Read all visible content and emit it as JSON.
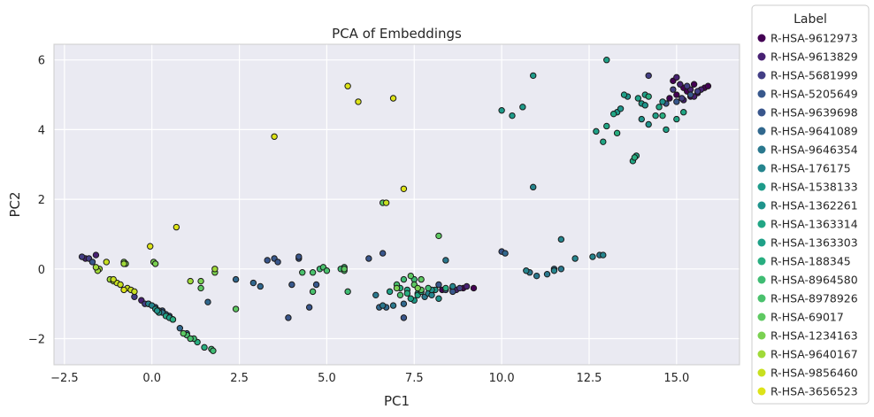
{
  "chart_data": {
    "type": "scatter",
    "title": "PCA of Embeddings",
    "xlabel": "PC1",
    "ylabel": "PC2",
    "xlim": [
      -2.8,
      16.8
    ],
    "ylim": [
      -2.75,
      6.45
    ],
    "xticks": [
      -2.5,
      0.0,
      2.5,
      5.0,
      7.5,
      10.0,
      12.5,
      15.0
    ],
    "xtick_labels": [
      "−2.5",
      "0.0",
      "2.5",
      "5.0",
      "7.5",
      "10.0",
      "12.5",
      "15.0"
    ],
    "yticks": [
      -2,
      0,
      2,
      4,
      6
    ],
    "ytick_labels": [
      "−2",
      "0",
      "2",
      "4",
      "6"
    ],
    "grid": true,
    "legend": {
      "title": "Label",
      "placement": "right-outside"
    },
    "series": [
      {
        "name": "R-HSA-9612973",
        "color": "#440154",
        "points": [
          [
            14.9,
            5.4
          ],
          [
            15.2,
            5.2
          ],
          [
            15.5,
            5.3
          ],
          [
            15.8,
            5.2
          ],
          [
            15.0,
            5.0
          ],
          [
            15.3,
            5.1
          ],
          [
            15.6,
            5.05
          ],
          [
            15.9,
            5.25
          ],
          [
            14.8,
            4.9
          ],
          [
            15.4,
            4.95
          ],
          [
            8.6,
            -0.55
          ],
          [
            8.9,
            -0.55
          ],
          [
            9.2,
            -0.55
          ],
          [
            8.3,
            -0.6
          ]
        ]
      },
      {
        "name": "R-HSA-9613829",
        "color": "#482173",
        "points": [
          [
            15.0,
            5.5
          ],
          [
            15.1,
            5.3
          ],
          [
            15.4,
            5.15
          ],
          [
            15.7,
            5.15
          ],
          [
            15.2,
            4.85
          ],
          [
            15.5,
            4.95
          ],
          [
            9.0,
            -0.5
          ],
          [
            8.7,
            -0.6
          ],
          [
            -0.3,
            -0.9
          ],
          [
            -0.1,
            -1.0
          ],
          [
            -1.9,
            0.3
          ],
          [
            -1.6,
            0.4
          ]
        ]
      },
      {
        "name": "R-HSA-5681999",
        "color": "#433e85",
        "points": [
          [
            15.3,
            5.25
          ],
          [
            15.6,
            5.1
          ],
          [
            14.9,
            5.15
          ],
          [
            15.15,
            4.9
          ],
          [
            14.2,
            5.55
          ],
          [
            -2.0,
            0.35
          ],
          [
            -1.8,
            0.3
          ],
          [
            -0.5,
            -0.8
          ],
          [
            -0.2,
            -1.0
          ],
          [
            8.8,
            -0.55
          ]
        ]
      },
      {
        "name": "R-HSA-5205649",
        "color": "#38588c",
        "points": [
          [
            15.4,
            5.0
          ],
          [
            15.0,
            4.8
          ],
          [
            14.7,
            4.75
          ],
          [
            8.4,
            -0.6
          ],
          [
            8.6,
            -0.65
          ],
          [
            0.1,
            -1.1
          ],
          [
            0.3,
            -1.2
          ],
          [
            -1.7,
            0.2
          ],
          [
            3.5,
            0.3
          ],
          [
            4.2,
            0.3
          ],
          [
            4.0,
            -0.45
          ],
          [
            4.7,
            -0.45
          ]
        ]
      },
      {
        "name": "R-HSA-9639698",
        "color": "#39568c",
        "points": [
          [
            0.5,
            -1.35
          ],
          [
            0.6,
            -1.45
          ],
          [
            3.3,
            0.25
          ],
          [
            3.6,
            0.2
          ],
          [
            4.2,
            0.35
          ],
          [
            6.2,
            0.3
          ],
          [
            6.6,
            0.45
          ],
          [
            3.9,
            -1.4
          ],
          [
            4.5,
            -1.1
          ],
          [
            7.2,
            -1.4
          ],
          [
            8.2,
            -0.45
          ],
          [
            10.0,
            0.5
          ]
        ]
      },
      {
        "name": "R-HSA-9641089",
        "color": "#31688e",
        "points": [
          [
            0.4,
            -1.3
          ],
          [
            0.8,
            -1.7
          ],
          [
            1.0,
            -1.85
          ],
          [
            1.6,
            -0.95
          ],
          [
            2.4,
            -0.3
          ],
          [
            2.9,
            -0.4
          ],
          [
            3.1,
            -0.5
          ],
          [
            6.5,
            -1.1
          ],
          [
            6.7,
            -1.1
          ],
          [
            7.2,
            -1.0
          ],
          [
            10.1,
            0.45
          ],
          [
            11.5,
            0.0
          ]
        ]
      },
      {
        "name": "R-HSA-9646354",
        "color": "#2a788e",
        "points": [
          [
            0.2,
            -1.2
          ],
          [
            0.3,
            -1.25
          ],
          [
            6.4,
            -0.75
          ],
          [
            6.6,
            -1.05
          ],
          [
            6.9,
            -1.05
          ],
          [
            7.8,
            -0.8
          ],
          [
            8.4,
            0.25
          ],
          [
            10.8,
            -0.1
          ],
          [
            11.0,
            -0.2
          ],
          [
            11.3,
            -0.15
          ],
          [
            11.7,
            0.0
          ],
          [
            12.8,
            0.4
          ]
        ]
      },
      {
        "name": "R-HSA-176175",
        "color": "#25858e",
        "points": [
          [
            -0.1,
            -1.0
          ],
          [
            0.0,
            -1.05
          ],
          [
            7.9,
            -0.7
          ],
          [
            8.0,
            -0.75
          ],
          [
            8.6,
            -0.5
          ],
          [
            10.9,
            2.35
          ],
          [
            11.7,
            0.85
          ],
          [
            12.1,
            0.3
          ],
          [
            12.6,
            0.35
          ],
          [
            12.9,
            0.4
          ],
          [
            11.5,
            -0.05
          ],
          [
            10.7,
            -0.05
          ]
        ]
      },
      {
        "name": "R-HSA-1538133",
        "color": "#1e9b8a",
        "points": [
          [
            0.1,
            -1.15
          ],
          [
            0.2,
            -1.25
          ],
          [
            10.0,
            4.55
          ],
          [
            10.6,
            4.65
          ],
          [
            10.9,
            5.55
          ],
          [
            10.3,
            4.4
          ],
          [
            13.3,
            4.5
          ],
          [
            14.0,
            4.75
          ],
          [
            7.5,
            -0.9
          ],
          [
            8.1,
            -0.6
          ]
        ]
      },
      {
        "name": "R-HSA-1362261",
        "color": "#1f948c",
        "points": [
          [
            0.15,
            -1.2
          ],
          [
            13.4,
            4.6
          ],
          [
            13.6,
            4.95
          ],
          [
            14.0,
            4.3
          ],
          [
            14.1,
            4.7
          ],
          [
            14.6,
            4.8
          ],
          [
            14.2,
            4.15
          ],
          [
            7.6,
            -0.7
          ],
          [
            8.0,
            -0.6
          ],
          [
            8.2,
            -0.85
          ]
        ]
      },
      {
        "name": "R-HSA-1363314",
        "color": "#21a685",
        "points": [
          [
            0.4,
            -1.35
          ],
          [
            12.9,
            3.65
          ],
          [
            13.0,
            4.1
          ],
          [
            13.2,
            4.45
          ],
          [
            13.75,
            3.1
          ],
          [
            13.85,
            3.25
          ],
          [
            14.5,
            4.65
          ],
          [
            15.0,
            4.3
          ],
          [
            15.2,
            4.5
          ],
          [
            7.3,
            -0.6
          ],
          [
            7.6,
            -0.75
          ]
        ]
      },
      {
        "name": "R-HSA-1363303",
        "color": "#1fa188",
        "points": [
          [
            0.5,
            -1.4
          ],
          [
            13.0,
            6.0
          ],
          [
            13.5,
            5.0
          ],
          [
            13.9,
            4.9
          ],
          [
            14.1,
            5.0
          ],
          [
            14.4,
            4.4
          ],
          [
            14.7,
            4.0
          ],
          [
            12.7,
            3.95
          ],
          [
            7.4,
            -0.85
          ],
          [
            6.8,
            -0.65
          ]
        ]
      },
      {
        "name": "R-HSA-188345",
        "color": "#28ae80",
        "points": [
          [
            0.6,
            -1.45
          ],
          [
            1.3,
            -2.1
          ],
          [
            1.5,
            -2.25
          ],
          [
            13.8,
            3.2
          ],
          [
            14.2,
            4.95
          ],
          [
            13.3,
            3.9
          ],
          [
            14.6,
            4.4
          ],
          [
            7.1,
            -0.55
          ],
          [
            7.3,
            -0.7
          ],
          [
            7.7,
            -0.65
          ],
          [
            8.4,
            -0.55
          ]
        ]
      },
      {
        "name": "R-HSA-8964580",
        "color": "#3fbc73",
        "points": [
          [
            1.7,
            -2.3
          ],
          [
            1.75,
            -2.35
          ],
          [
            1.2,
            -2.0
          ],
          [
            5.6,
            -0.65
          ],
          [
            5.5,
            0.05
          ],
          [
            5.4,
            0.0
          ],
          [
            4.8,
            0.0
          ],
          [
            7.2,
            -0.3
          ],
          [
            7.5,
            -0.3
          ],
          [
            7.9,
            -0.55
          ]
        ]
      },
      {
        "name": "R-HSA-8978926",
        "color": "#4ac16d",
        "points": [
          [
            1.0,
            -1.9
          ],
          [
            1.1,
            -2.0
          ],
          [
            4.3,
            -0.1
          ],
          [
            4.6,
            -0.1
          ],
          [
            4.9,
            0.05
          ],
          [
            5.0,
            -0.05
          ],
          [
            5.5,
            -0.05
          ],
          [
            4.6,
            -0.65
          ],
          [
            7.0,
            -0.45
          ],
          [
            7.1,
            -0.75
          ]
        ]
      },
      {
        "name": "R-HSA-69017",
        "color": "#5ec962",
        "points": [
          [
            0.9,
            -1.85
          ],
          [
            1.4,
            -0.55
          ],
          [
            2.4,
            -1.15
          ],
          [
            6.6,
            1.9
          ],
          [
            7.4,
            -0.2
          ],
          [
            7.7,
            -0.3
          ],
          [
            8.2,
            0.95
          ],
          [
            7.7,
            -0.6
          ],
          [
            7.5,
            -0.45
          ],
          [
            5.5,
            0.0
          ]
        ]
      },
      {
        "name": "R-HSA-1234163",
        "color": "#7ad151",
        "points": [
          [
            -0.8,
            0.2
          ],
          [
            -0.75,
            0.15
          ],
          [
            0.05,
            0.2
          ],
          [
            0.1,
            0.15
          ],
          [
            1.4,
            -0.35
          ],
          [
            1.8,
            -0.1
          ],
          [
            7.0,
            -0.55
          ],
          [
            7.6,
            -0.55
          ]
        ]
      },
      {
        "name": "R-HSA-9640167",
        "color": "#a0da39",
        "points": [
          [
            -1.5,
            0.0
          ],
          [
            -1.55,
            -0.05
          ],
          [
            -1.2,
            -0.3
          ],
          [
            -1.1,
            -0.35
          ],
          [
            1.1,
            -0.35
          ],
          [
            1.8,
            0.0
          ],
          [
            -1.6,
            0.05
          ],
          [
            -0.8,
            0.15
          ]
        ]
      },
      {
        "name": "R-HSA-9856460",
        "color": "#c8e020",
        "points": [
          [
            -1.0,
            -0.4
          ],
          [
            -0.9,
            -0.45
          ],
          [
            -0.7,
            -0.55
          ],
          [
            -0.6,
            -0.6
          ],
          [
            -1.3,
            0.2
          ],
          [
            6.7,
            1.9
          ],
          [
            -1.1,
            -0.3
          ],
          [
            -0.5,
            -0.65
          ]
        ]
      },
      {
        "name": "R-HSA-3656523",
        "color": "#dde318",
        "points": [
          [
            5.6,
            5.25
          ],
          [
            5.9,
            4.8
          ],
          [
            6.9,
            4.9
          ],
          [
            3.5,
            3.8
          ],
          [
            7.2,
            2.3
          ],
          [
            0.7,
            1.2
          ],
          [
            -0.05,
            0.65
          ],
          [
            -0.8,
            -0.6
          ]
        ]
      }
    ]
  }
}
